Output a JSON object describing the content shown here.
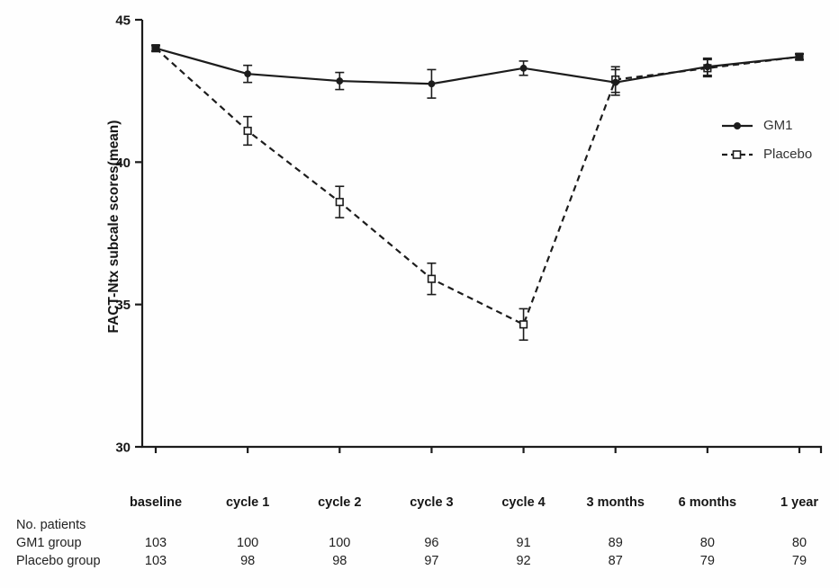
{
  "figure": {
    "background": "#fefefe",
    "line_color": "#1c1c1c"
  },
  "chart_data": {
    "type": "line",
    "title": "",
    "xlabel": "",
    "ylabel": "FACT-Ntx subcale scores(mean)",
    "ylim": [
      30,
      45
    ],
    "yticks": [
      "30",
      "35",
      "40",
      "45"
    ],
    "grid": false,
    "legend_position": "right",
    "categories": [
      "baseline",
      "cycle 1",
      "cycle 2",
      "cycle 3",
      "cycle 4",
      "3 months",
      "6 months",
      "1 year"
    ],
    "series": [
      {
        "name": "GM1",
        "line_style": "solid",
        "marker": "filled-circle",
        "values": [
          44.0,
          43.1,
          42.85,
          42.75,
          43.3,
          42.8,
          43.35,
          43.7
        ],
        "errors": [
          0.1,
          0.3,
          0.3,
          0.5,
          0.25,
          0.45,
          0.3,
          0.1
        ]
      },
      {
        "name": "Placebo",
        "line_style": "dashed",
        "marker": "open-square",
        "values": [
          44.0,
          41.1,
          38.6,
          35.9,
          34.3,
          42.9,
          43.3,
          43.7
        ],
        "errors": [
          0.1,
          0.5,
          0.55,
          0.55,
          0.55,
          0.45,
          0.3,
          0.1
        ]
      }
    ]
  },
  "patients_table": {
    "section_label": "No. patients",
    "rows": [
      {
        "label": "GM1 group",
        "values": [
          "103",
          "100",
          "100",
          "96",
          "91",
          "89",
          "80",
          "80"
        ]
      },
      {
        "label": "Placebo group",
        "values": [
          "103",
          "98",
          "98",
          "97",
          "92",
          "87",
          "79",
          "79"
        ]
      }
    ]
  }
}
